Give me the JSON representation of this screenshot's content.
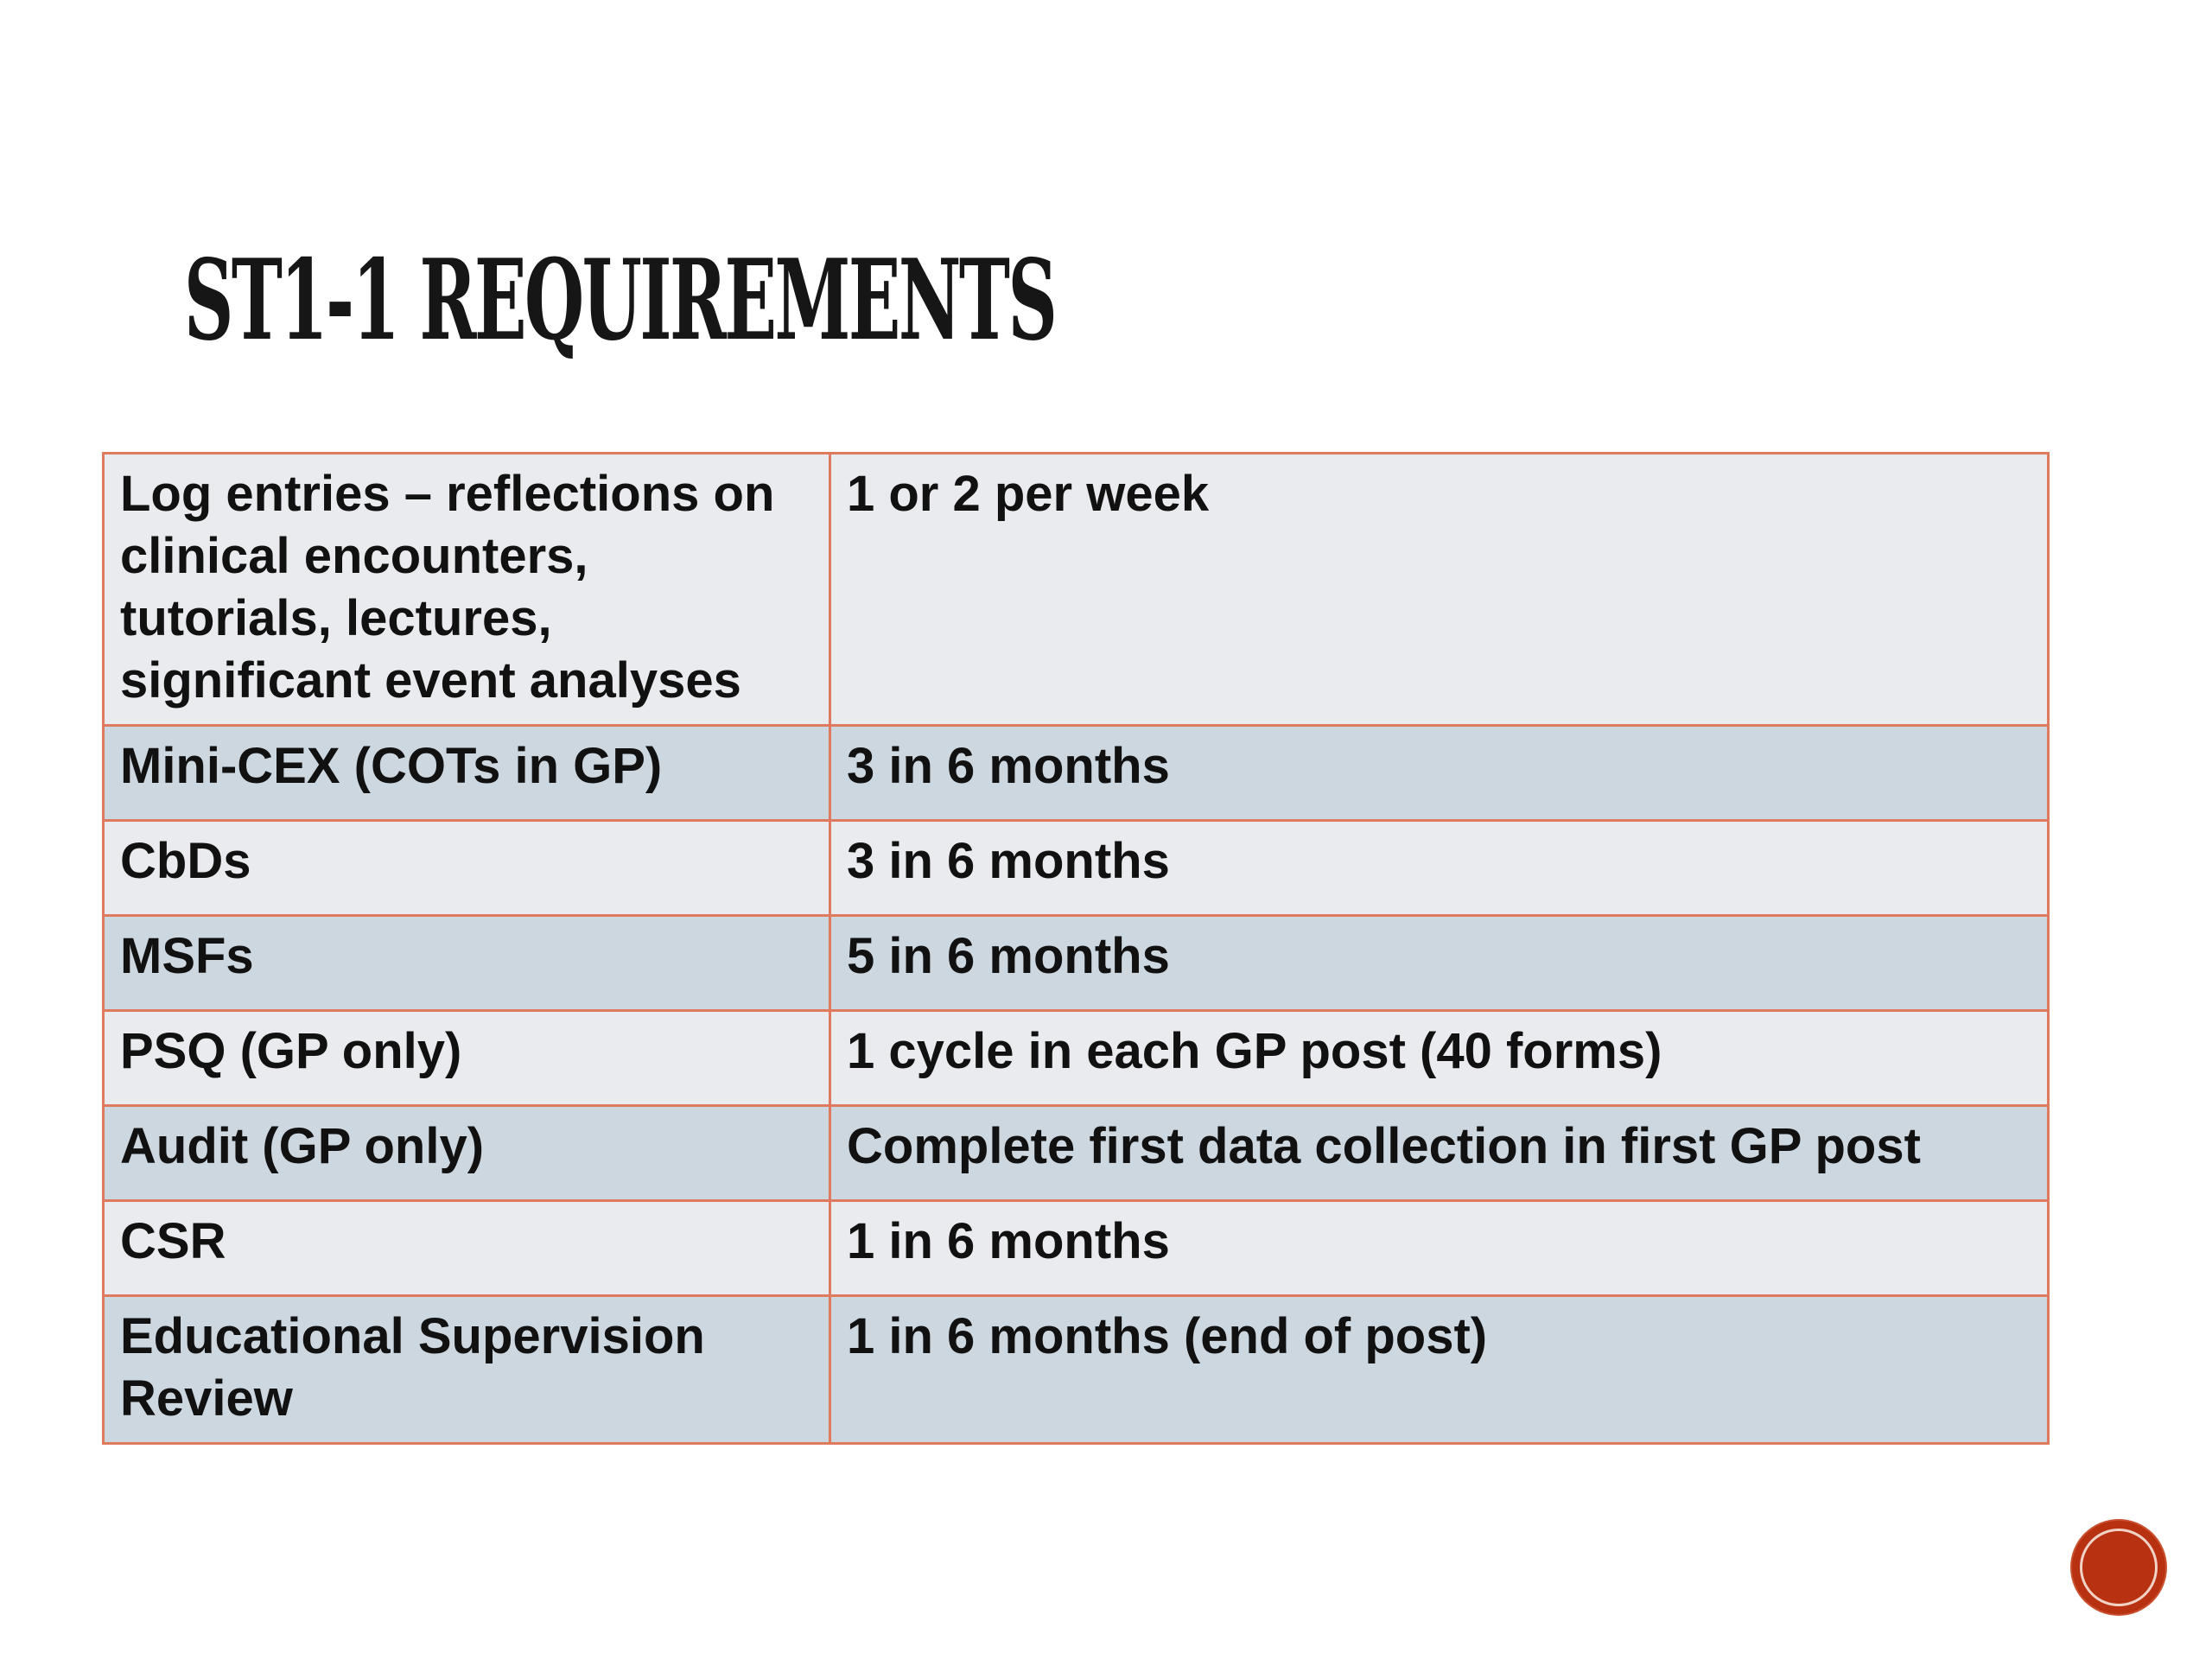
{
  "slide": {
    "title": "ST1-1  REQUIREMENTS",
    "colors": {
      "border": "#e07a5f",
      "row_light": "#e9ebee",
      "row_dark": "#cdd7e0",
      "badge": "#b83212"
    },
    "table": {
      "rows": [
        {
          "item": "Log entries – reflections on clinical encounters, tutorials, lectures, significant event analyses",
          "requirement": "1 or 2 per week"
        },
        {
          "item": "Mini-CEX (COTs in GP)",
          "requirement": "3 in 6 months"
        },
        {
          "item": "CbDs",
          "requirement": "3 in 6 months"
        },
        {
          "item": "MSFs",
          "requirement": "5 in 6 months"
        },
        {
          "item": "PSQ (GP only)",
          "requirement": "1 cycle in each GP post (40 forms)"
        },
        {
          "item": "Audit (GP only)",
          "requirement": "Complete first data collection in first GP post"
        },
        {
          "item": "CSR",
          "requirement": "1 in 6 months"
        },
        {
          "item": "Educational Supervision Review",
          "requirement": "1 in 6 months (end of post)"
        }
      ]
    },
    "badge_icon": "red-circle-badge-icon"
  }
}
